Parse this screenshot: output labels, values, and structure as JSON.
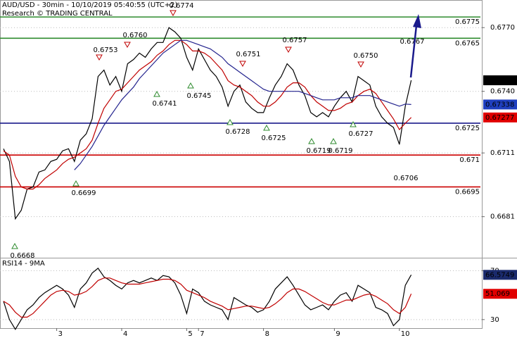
{
  "chart_data": {
    "type": "line",
    "title": "AUD/USD - 30min - 10/10/2019 05:40:55 (UTC+2)",
    "subtitle": "Research © TRADING CENTRAL",
    "categories": [
      null,
      null,
      null,
      null,
      null,
      null,
      null,
      null,
      null,
      "3",
      null,
      null,
      null,
      null,
      null,
      null,
      null,
      null,
      null,
      null,
      "4",
      null,
      null,
      null,
      null,
      null,
      null,
      null,
      null,
      null,
      null,
      "5",
      null,
      "7",
      null,
      null,
      null,
      null,
      null,
      null,
      null,
      null,
      null,
      null,
      "8",
      null,
      null,
      null,
      null,
      null,
      null,
      null,
      null,
      null,
      null,
      null,
      "9",
      null,
      null,
      null,
      null,
      null,
      null,
      null,
      null,
      null,
      null,
      "10",
      null,
      null
    ],
    "ylim": [
      0.6662,
      0.6783
    ],
    "yticks": [
      {
        "value": 0.677,
        "label": "0.6770"
      },
      {
        "value": 0.674,
        "label": "0.6740"
      },
      0.6711,
      0.6681
    ],
    "grid": true,
    "series": [
      {
        "name": "AUD/USD",
        "color": "#000000",
        "values": [
          0.6713,
          0.6707,
          0.668,
          0.6684,
          0.6694,
          0.6695,
          0.6702,
          0.6703,
          0.6707,
          0.6708,
          0.6712,
          0.6713,
          0.6707,
          0.6717,
          0.672,
          0.6727,
          0.6747,
          0.675,
          0.6743,
          0.6747,
          0.674,
          0.6753,
          0.6755,
          0.6758,
          0.6756,
          0.676,
          0.6763,
          0.6763,
          0.677,
          0.6768,
          0.6765,
          0.6756,
          0.675,
          0.676,
          0.6755,
          0.675,
          0.6747,
          0.6742,
          0.6733,
          0.674,
          0.6743,
          0.6735,
          0.6732,
          0.673,
          0.673,
          0.6737,
          0.6743,
          0.6747,
          0.6753,
          0.675,
          0.6743,
          0.6738,
          0.673,
          0.6728,
          0.673,
          0.6728,
          0.6733,
          0.6737,
          0.674,
          0.6735,
          0.6747,
          0.6745,
          0.6743,
          0.6733,
          0.6728,
          0.6725,
          0.6723,
          0.6715,
          0.6733,
          0.67452
        ],
        "value_box": "#000000"
      },
      {
        "name": "MA fast",
        "color": "#c00000",
        "values": [
          0.6712,
          0.671,
          0.67,
          0.6695,
          0.6694,
          0.6694,
          0.6696,
          0.6699,
          0.6701,
          0.6703,
          0.6706,
          0.6708,
          0.6709,
          0.6711,
          0.6713,
          0.6717,
          0.6725,
          0.6732,
          0.6736,
          0.674,
          0.6741,
          0.6744,
          0.6747,
          0.675,
          0.6752,
          0.6754,
          0.6757,
          0.6759,
          0.6762,
          0.6764,
          0.6764,
          0.6762,
          0.6759,
          0.6759,
          0.6758,
          0.6756,
          0.6753,
          0.675,
          0.6745,
          0.6743,
          0.6742,
          0.674,
          0.6738,
          0.6735,
          0.6733,
          0.6733,
          0.6735,
          0.6738,
          0.6742,
          0.6744,
          0.6744,
          0.6742,
          0.6738,
          0.6735,
          0.6733,
          0.6731,
          0.6731,
          0.6732,
          0.6734,
          0.6735,
          0.6738,
          0.674,
          0.6741,
          0.6739,
          0.6735,
          0.6731,
          0.6727,
          0.6722,
          0.6725,
          0.67277
        ],
        "value_box": "#e00000"
      },
      {
        "name": "MA slow",
        "color": "#23238e",
        "values": [
          null,
          null,
          null,
          null,
          null,
          null,
          null,
          null,
          null,
          null,
          null,
          null,
          0.6703,
          0.6706,
          0.671,
          0.6714,
          0.6719,
          0.6724,
          0.6728,
          0.6732,
          0.6736,
          0.6739,
          0.6742,
          0.6746,
          0.6749,
          0.6752,
          0.6755,
          0.6758,
          0.676,
          0.6762,
          0.6764,
          0.6764,
          0.6763,
          0.6762,
          0.6761,
          0.676,
          0.6758,
          0.6756,
          0.6753,
          0.6751,
          0.6749,
          0.6747,
          0.6745,
          0.6743,
          0.6741,
          0.674,
          0.674,
          0.674,
          0.674,
          0.674,
          0.674,
          0.6739,
          0.6738,
          0.6737,
          0.6736,
          0.6736,
          0.6736,
          0.6737,
          0.6737,
          0.6737,
          0.6738,
          0.6738,
          0.6738,
          0.6737,
          0.6736,
          0.6735,
          0.6734,
          0.6733,
          0.6734,
          0.67338
        ],
        "value_box": "#1f3fbf"
      }
    ],
    "levels": [
      {
        "value": 0.6775,
        "color": "#2e8b2e"
      },
      {
        "value": 0.6765,
        "color": "#2e8b2e"
      },
      {
        "value": 0.6725,
        "color": "#1a1a8c"
      },
      {
        "value": 0.671,
        "color": "#cc0000"
      },
      {
        "value": 0.6695,
        "color": "#cc0000"
      }
    ],
    "annotations": [
      "0.6774",
      "0.6760",
      "0.6753",
      "0.6741",
      "0.6745",
      "0.6751",
      "0.6757",
      "0.6728",
      "0.6725",
      "0.6719",
      "0.6719",
      "0.6727",
      "0.6750",
      "0.6767",
      "0.6699",
      "0.6668",
      "0.6706"
    ],
    "rsi": {
      "label": "RSI14 - 9MA",
      "ylim": [
        23,
        80
      ],
      "yticks": [
        70,
        30
      ],
      "series": [
        {
          "name": "RSI14",
          "color": "#000000",
          "values": [
            45,
            30,
            22,
            30,
            38,
            42,
            48,
            52,
            55,
            58,
            55,
            50,
            40,
            55,
            60,
            68,
            72,
            65,
            62,
            58,
            55,
            60,
            62,
            60,
            62,
            64,
            62,
            66,
            65,
            60,
            50,
            35,
            55,
            52,
            45,
            42,
            40,
            38,
            30,
            48,
            45,
            42,
            40,
            36,
            38,
            45,
            55,
            60,
            65,
            58,
            50,
            42,
            38,
            40,
            42,
            38,
            45,
            50,
            52,
            45,
            58,
            55,
            52,
            40,
            38,
            35,
            25,
            30,
            58,
            66.5749
          ],
          "value_box": "#1a2a6c"
        },
        {
          "name": "9MA",
          "color": "#c00000",
          "values": [
            45,
            42,
            36,
            32,
            32,
            35,
            40,
            45,
            50,
            53,
            54,
            53,
            50,
            51,
            53,
            57,
            62,
            64,
            64,
            62,
            60,
            59,
            59,
            59,
            60,
            61,
            62,
            63,
            63,
            62,
            59,
            54,
            52,
            50,
            48,
            45,
            43,
            41,
            38,
            39,
            40,
            41,
            41,
            40,
            39,
            40,
            43,
            47,
            52,
            55,
            55,
            53,
            50,
            47,
            44,
            42,
            42,
            44,
            46,
            46,
            48,
            50,
            51,
            49,
            46,
            43,
            38,
            35,
            40,
            51.069
          ],
          "value_box": "#e00000"
        }
      ]
    }
  }
}
